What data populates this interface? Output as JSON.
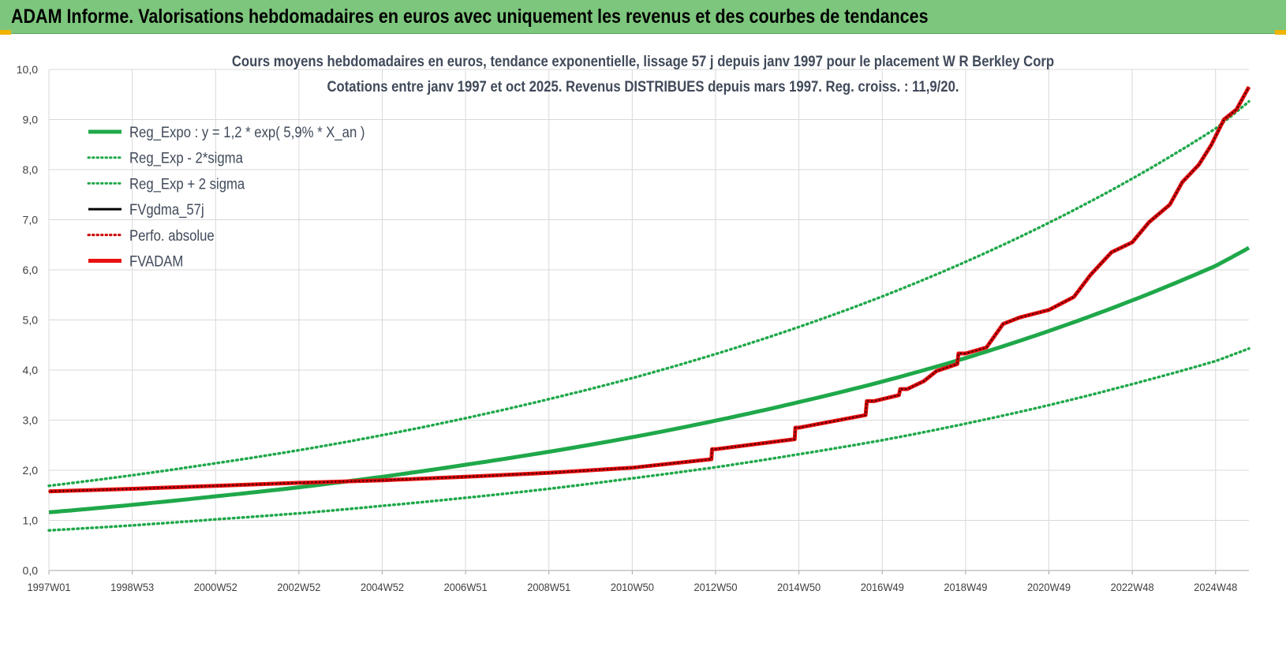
{
  "header": {
    "title": "ADAM Informe. Valorisations hebdomadaires en euros avec uniquement les revenus et des courbes de tendances"
  },
  "colors": {
    "header_bg": "#7dc67d",
    "reg_expo": "#1fa84a",
    "sigma": "#1fa84a",
    "fvgdma": "#000000",
    "perfo": "#cc0000",
    "fvadam": "#e81010",
    "grid": "#d9d9d9",
    "title_text": "#404a5a"
  },
  "chart_data": {
    "type": "line",
    "title_line1": "Cours moyens hebdomadaires en euros, tendance exponentielle, lissage 57 j depuis janv 1997 pour le placement W R Berkley Corp",
    "title_line2": "Cotations entre janv 1997 et oct 2025. Revenus DISTRIBUES depuis mars 1997. Reg. croiss. : 11,9/20.",
    "ylim": [
      0,
      10
    ],
    "y_ticks": [
      "0,0",
      "1,0",
      "2,0",
      "3,0",
      "4,0",
      "5,0",
      "6,0",
      "7,0",
      "8,0",
      "9,0",
      "10,0"
    ],
    "x_range": [
      1997.0,
      2025.8
    ],
    "x_ticks": [
      {
        "label": "1997W01",
        "t": 1997.0
      },
      {
        "label": "1998W53",
        "t": 1999.0
      },
      {
        "label": "2000W52",
        "t": 2001.0
      },
      {
        "label": "2002W52",
        "t": 2003.0
      },
      {
        "label": "2004W52",
        "t": 2005.0
      },
      {
        "label": "2006W51",
        "t": 2007.0
      },
      {
        "label": "2008W51",
        "t": 2009.0
      },
      {
        "label": "2010W50",
        "t": 2011.0
      },
      {
        "label": "2012W50",
        "t": 2013.0
      },
      {
        "label": "2014W50",
        "t": 2015.0
      },
      {
        "label": "2016W49",
        "t": 2017.0
      },
      {
        "label": "2018W49",
        "t": 2019.0
      },
      {
        "label": "2020W49",
        "t": 2021.0
      },
      {
        "label": "2022W48",
        "t": 2023.0
      },
      {
        "label": "2024W48",
        "t": 2025.0
      }
    ],
    "legend": [
      {
        "label": "Reg_Expo : y = 1,2 * exp( 5,9% *  X_an )",
        "color": "#1fa84a",
        "style": "solid",
        "width": 5
      },
      {
        "label": "Reg_Exp - 2*sigma",
        "color": "#1fa84a",
        "style": "dotted",
        "width": 3.5
      },
      {
        "label": "Reg_Exp + 2 sigma",
        "color": "#1fa84a",
        "style": "dotted",
        "width": 3.5
      },
      {
        "label": "FVgdma_57j",
        "color": "#000000",
        "style": "solid",
        "width": 3
      },
      {
        "label": "Perfo. absolue",
        "color": "#cc0000",
        "style": "dotted",
        "width": 2.5
      },
      {
        "label": "FVADAM",
        "color": "#e81010",
        "style": "solid",
        "width": 5
      }
    ],
    "legend_position": "top-left",
    "grid": true,
    "series": [
      {
        "name": "Reg_Expo : y = 1,2 * exp( 5,9% *  X_an )",
        "x": [
          1997,
          1999,
          2001,
          2003,
          2005,
          2007,
          2009,
          2011,
          2013,
          2015,
          2017,
          2019,
          2021,
          2023,
          2025,
          2025.8
        ],
        "y": [
          1.16,
          1.31,
          1.48,
          1.66,
          1.87,
          2.11,
          2.37,
          2.66,
          2.99,
          3.36,
          3.77,
          4.24,
          4.78,
          5.39,
          6.08,
          6.44
        ]
      },
      {
        "name": "Reg_Exp - 2*sigma",
        "x": [
          1997,
          1999,
          2001,
          2003,
          2005,
          2007,
          2009,
          2011,
          2013,
          2015,
          2017,
          2019,
          2021,
          2023,
          2025,
          2025.8
        ],
        "y": [
          0.8,
          0.9,
          1.02,
          1.14,
          1.29,
          1.45,
          1.63,
          1.84,
          2.06,
          2.32,
          2.6,
          2.93,
          3.3,
          3.72,
          4.18,
          4.43
        ]
      },
      {
        "name": "Reg_Exp + 2 sigma",
        "x": [
          1997,
          1999,
          2001,
          2003,
          2005,
          2007,
          2009,
          2011,
          2013,
          2015,
          2017,
          2019,
          2021,
          2023,
          2025,
          2025.8
        ],
        "y": [
          1.69,
          1.9,
          2.14,
          2.4,
          2.7,
          3.04,
          3.42,
          3.84,
          4.32,
          4.86,
          5.47,
          6.16,
          6.94,
          7.82,
          8.82,
          9.36
        ]
      },
      {
        "name": "FVgdma_57j",
        "x": [
          1997,
          1999,
          2001,
          2003,
          2005,
          2007,
          2009,
          2011,
          2012.9,
          2013.0,
          2014.9,
          2015.0,
          2016.6,
          2016.8,
          2017.4,
          2017.6,
          2018.0,
          2018.3,
          2018.8,
          2019.0,
          2019.5,
          2019.9,
          2020.3,
          2021.0,
          2021.6,
          2022.0,
          2022.5,
          2023.0,
          2023.4,
          2023.9,
          2024.2,
          2024.6,
          2024.9,
          2025.2,
          2025.5,
          2025.8
        ],
        "y": [
          1.58,
          1.63,
          1.69,
          1.75,
          1.8,
          1.87,
          1.95,
          2.05,
          2.22,
          2.42,
          2.62,
          2.85,
          3.1,
          3.38,
          3.5,
          3.62,
          3.78,
          3.98,
          4.12,
          4.33,
          4.45,
          4.92,
          5.05,
          5.2,
          5.46,
          5.9,
          6.35,
          6.55,
          6.95,
          7.3,
          7.75,
          8.1,
          8.5,
          9.0,
          9.2,
          9.65
        ]
      },
      {
        "name": "Perfo. absolue",
        "x": [
          1997,
          1999,
          2001,
          2003,
          2005,
          2007,
          2009,
          2011,
          2012.9,
          2013.0,
          2014.9,
          2015.0,
          2016.6,
          2016.8,
          2017.4,
          2017.6,
          2018.0,
          2018.3,
          2018.8,
          2019.0,
          2019.5,
          2019.9,
          2020.3,
          2021.0,
          2021.6,
          2022.0,
          2022.5,
          2023.0,
          2023.4,
          2023.9,
          2024.2,
          2024.6,
          2024.9,
          2025.2,
          2025.5,
          2025.8
        ],
        "y": [
          1.58,
          1.63,
          1.69,
          1.75,
          1.8,
          1.87,
          1.95,
          2.05,
          2.22,
          2.42,
          2.62,
          2.85,
          3.1,
          3.38,
          3.5,
          3.62,
          3.78,
          3.98,
          4.12,
          4.33,
          4.45,
          4.92,
          5.05,
          5.2,
          5.46,
          5.9,
          6.35,
          6.55,
          6.95,
          7.3,
          7.75,
          8.1,
          8.5,
          9.0,
          9.2,
          9.65
        ]
      },
      {
        "name": "FVADAM",
        "x": [
          1997,
          1999,
          2001,
          2003,
          2005,
          2007,
          2009,
          2011,
          2012.9,
          2013.0,
          2014.9,
          2015.0,
          2016.6,
          2016.8,
          2017.4,
          2017.6,
          2018.0,
          2018.3,
          2018.8,
          2019.0,
          2019.5,
          2019.9,
          2020.3,
          2021.0,
          2021.6,
          2022.0,
          2022.5,
          2023.0,
          2023.4,
          2023.9,
          2024.2,
          2024.6,
          2024.9,
          2025.2,
          2025.5,
          2025.8
        ],
        "y": [
          1.58,
          1.63,
          1.69,
          1.75,
          1.8,
          1.87,
          1.95,
          2.05,
          2.22,
          2.42,
          2.62,
          2.85,
          3.1,
          3.38,
          3.5,
          3.62,
          3.78,
          3.98,
          4.12,
          4.33,
          4.45,
          4.92,
          5.05,
          5.2,
          5.46,
          5.9,
          6.35,
          6.55,
          6.95,
          7.3,
          7.75,
          8.1,
          8.5,
          9.0,
          9.2,
          9.65
        ],
        "step": true
      }
    ]
  }
}
